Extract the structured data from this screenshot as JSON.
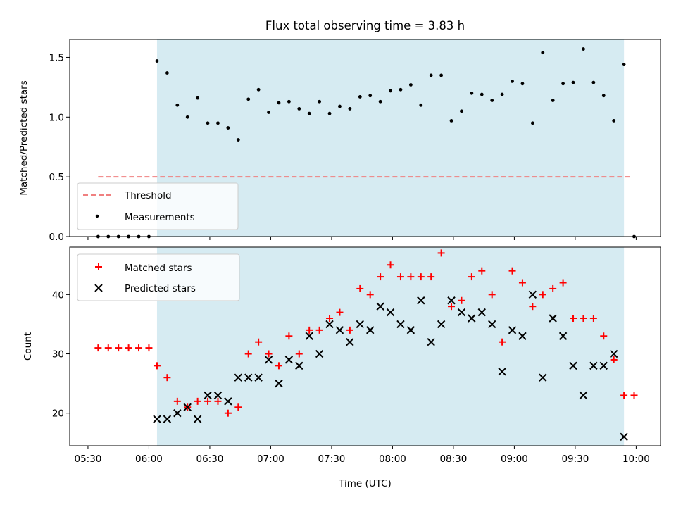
{
  "chart_data": [
    {
      "type": "scatter",
      "title": "Flux total observing time = 3.83 h",
      "ylabel": "Matched/Predicted stars",
      "ylim": [
        0,
        1.65
      ],
      "yticks": [
        0,
        0.5,
        1.0,
        1.5
      ],
      "ytick_labels": [
        "0.0",
        "0.5",
        "1.0",
        "1.5"
      ],
      "shaded_span": [
        "06:04",
        "09:54"
      ],
      "shade_color": "#add8e6",
      "threshold": {
        "name": "Threshold",
        "value": 0.5,
        "x_range": [
          "05:35",
          "09:58"
        ],
        "color": "#f08080",
        "style": "dashed"
      },
      "legend": {
        "position": "lower-left",
        "entries": [
          "Threshold",
          "Measurements"
        ]
      },
      "series": [
        {
          "name": "Measurements",
          "marker": "dot",
          "color": "#000000",
          "x": [
            "05:35",
            "05:40",
            "05:45",
            "05:50",
            "05:55",
            "06:00",
            "06:04",
            "06:09",
            "06:14",
            "06:19",
            "06:24",
            "06:29",
            "06:34",
            "06:39",
            "06:44",
            "06:49",
            "06:54",
            "06:59",
            "07:04",
            "07:09",
            "07:14",
            "07:19",
            "07:24",
            "07:29",
            "07:34",
            "07:39",
            "07:44",
            "07:49",
            "07:54",
            "07:59",
            "08:04",
            "08:09",
            "08:14",
            "08:19",
            "08:24",
            "08:29",
            "08:34",
            "08:39",
            "08:44",
            "08:49",
            "08:54",
            "08:59",
            "09:04",
            "09:09",
            "09:14",
            "09:19",
            "09:24",
            "09:29",
            "09:34",
            "09:39",
            "09:44",
            "09:49",
            "09:54",
            "09:59"
          ],
          "y": [
            0,
            0,
            0,
            0,
            0,
            0,
            1.47,
            1.37,
            1.1,
            1.0,
            1.16,
            0.95,
            0.95,
            0.91,
            0.81,
            1.15,
            1.23,
            1.04,
            1.12,
            1.13,
            1.07,
            1.03,
            1.13,
            1.03,
            1.09,
            1.07,
            1.17,
            1.18,
            1.13,
            1.22,
            1.23,
            1.27,
            1.1,
            1.35,
            1.35,
            0.97,
            1.05,
            1.2,
            1.19,
            1.14,
            1.19,
            1.3,
            1.28,
            0.95,
            1.54,
            1.14,
            1.28,
            1.29,
            1.57,
            1.29,
            1.18,
            0.97,
            1.44,
            0
          ]
        }
      ]
    },
    {
      "type": "scatter",
      "xlabel": "Time (UTC)",
      "ylabel": "Count",
      "ylim": [
        14.5,
        48
      ],
      "yticks": [
        20,
        30,
        40
      ],
      "xlim": [
        "05:21",
        "10:12"
      ],
      "xticks": [
        "05:30",
        "06:00",
        "06:30",
        "07:00",
        "07:30",
        "08:00",
        "08:30",
        "09:00",
        "09:30",
        "10:00"
      ],
      "shaded_span": [
        "06:04",
        "09:54"
      ],
      "shade_color": "#add8e6",
      "legend": {
        "position": "top-left",
        "entries": [
          "Matched stars",
          "Predicted stars"
        ]
      },
      "series": [
        {
          "name": "Matched stars",
          "marker": "plus",
          "color": "#ff0000",
          "x": [
            "05:35",
            "05:40",
            "05:45",
            "05:50",
            "05:55",
            "06:00",
            "06:04",
            "06:09",
            "06:14",
            "06:19",
            "06:24",
            "06:29",
            "06:34",
            "06:39",
            "06:44",
            "06:49",
            "06:54",
            "06:59",
            "07:04",
            "07:09",
            "07:14",
            "07:19",
            "07:24",
            "07:29",
            "07:34",
            "07:39",
            "07:44",
            "07:49",
            "07:54",
            "07:59",
            "08:04",
            "08:09",
            "08:14",
            "08:19",
            "08:24",
            "08:29",
            "08:34",
            "08:39",
            "08:44",
            "08:49",
            "08:54",
            "08:59",
            "09:04",
            "09:09",
            "09:14",
            "09:19",
            "09:24",
            "09:29",
            "09:34",
            "09:39",
            "09:44",
            "09:49",
            "09:54",
            "09:59"
          ],
          "y": [
            31,
            31,
            31,
            31,
            31,
            31,
            28,
            26,
            22,
            21,
            22,
            22,
            22,
            20,
            21,
            30,
            32,
            30,
            28,
            33,
            30,
            34,
            34,
            36,
            37,
            34,
            41,
            40,
            43,
            45,
            43,
            43,
            43,
            43,
            47,
            38,
            39,
            43,
            44,
            40,
            32,
            44,
            42,
            38,
            40,
            41,
            42,
            36,
            36,
            36,
            33,
            29,
            23,
            23
          ]
        },
        {
          "name": "Predicted stars",
          "marker": "x",
          "color": "#000000",
          "x": [
            "06:04",
            "06:09",
            "06:14",
            "06:19",
            "06:24",
            "06:29",
            "06:34",
            "06:39",
            "06:44",
            "06:49",
            "06:54",
            "06:59",
            "07:04",
            "07:09",
            "07:14",
            "07:19",
            "07:24",
            "07:29",
            "07:34",
            "07:39",
            "07:44",
            "07:49",
            "07:54",
            "07:59",
            "08:04",
            "08:09",
            "08:14",
            "08:19",
            "08:24",
            "08:29",
            "08:34",
            "08:39",
            "08:44",
            "08:49",
            "08:54",
            "08:59",
            "09:04",
            "09:09",
            "09:14",
            "09:19",
            "09:24",
            "09:29",
            "09:34",
            "09:39",
            "09:44",
            "09:49",
            "09:54"
          ],
          "y": [
            19,
            19,
            20,
            21,
            19,
            23,
            23,
            22,
            26,
            26,
            26,
            29,
            25,
            29,
            28,
            33,
            30,
            35,
            34,
            32,
            35,
            34,
            38,
            37,
            35,
            34,
            39,
            32,
            35,
            39,
            37,
            36,
            37,
            35,
            27,
            34,
            33,
            40,
            26,
            36,
            33,
            28,
            23,
            28,
            28,
            30,
            16
          ]
        }
      ]
    }
  ]
}
